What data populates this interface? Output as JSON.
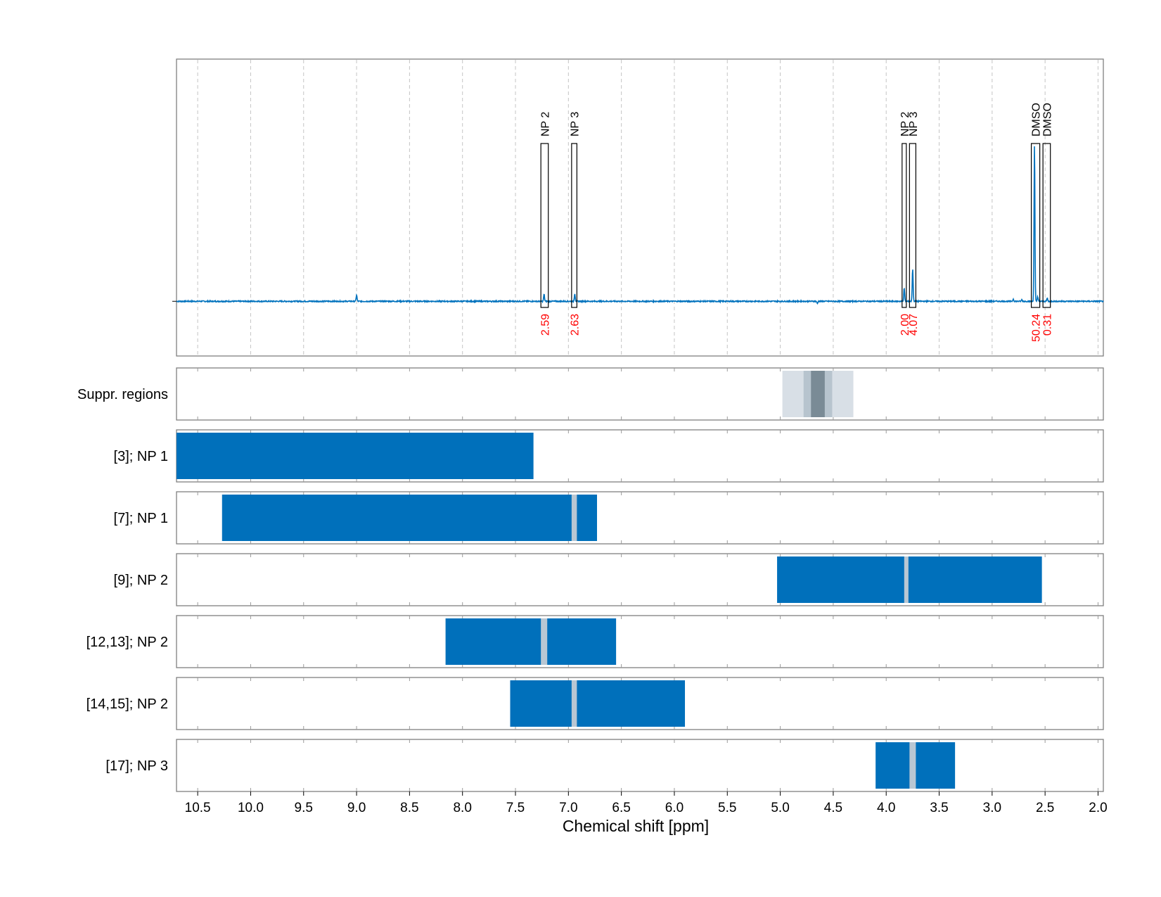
{
  "chart_data": {
    "type": "nmr_spectrum_with_range_tracks",
    "xlabel": "Chemical shift [ppm]",
    "xlim": [
      10.7,
      1.95
    ],
    "x_reversed": true,
    "xticks": [
      10.5,
      10.0,
      9.5,
      9.0,
      8.5,
      8.0,
      7.5,
      7.0,
      6.5,
      6.0,
      5.5,
      5.0,
      4.5,
      4.0,
      3.5,
      3.0,
      2.5,
      2.0
    ],
    "xtick_labels": [
      "10.5",
      "10.0",
      "9.5",
      "9.0",
      "8.5",
      "8.0",
      "7.5",
      "7.0",
      "6.5",
      "6.0",
      "5.5",
      "5.0",
      "4.5",
      "4.0",
      "3.5",
      "3.0",
      "2.5",
      "2.0"
    ],
    "grid": "vertical-dashed",
    "spectrum": {
      "baseline": 0,
      "ylim": [
        -0.07,
        0.31
      ],
      "peaks": [
        {
          "shift": 9.0,
          "height": 0.008
        },
        {
          "shift": 7.23,
          "height": 0.009
        },
        {
          "shift": 6.94,
          "height": 0.01
        },
        {
          "shift": 4.65,
          "height": -0.003
        },
        {
          "shift": 3.83,
          "height": 0.017
        },
        {
          "shift": 3.75,
          "height": 0.042
        },
        {
          "shift": 2.8,
          "height": 0.003
        },
        {
          "shift": 2.72,
          "height": 0.002
        },
        {
          "shift": 2.6,
          "height": 0.2
        },
        {
          "shift": 2.57,
          "height": 0.006
        },
        {
          "shift": 2.48,
          "height": 0.004
        }
      ]
    },
    "integrals": [
      {
        "label": "NP 2",
        "from": 7.26,
        "to": 7.19,
        "value": "2.59"
      },
      {
        "label": "NP 3",
        "from": 6.97,
        "to": 6.92,
        "value": "2.63"
      },
      {
        "label": "NP 2",
        "from": 3.85,
        "to": 3.81,
        "value": "2.00"
      },
      {
        "label": "NP 3",
        "from": 3.78,
        "to": 3.72,
        "value": "4.07"
      },
      {
        "label": "DMSO",
        "from": 2.63,
        "to": 2.55,
        "value": "50.24"
      },
      {
        "label": "DMSO",
        "from": 2.52,
        "to": 2.45,
        "value": "0.31"
      }
    ],
    "tracks": [
      {
        "label": "Suppr. regions",
        "bars": [
          {
            "from": 4.98,
            "to": 4.31,
            "color": "#d8dfe6"
          },
          {
            "from": 4.78,
            "to": 4.51,
            "color": "#b7c4ce"
          },
          {
            "from": 4.71,
            "to": 4.58,
            "color": "#7a8b96"
          }
        ],
        "gaps": []
      },
      {
        "label": "[3]; NP 1",
        "bars": [
          {
            "from": 10.7,
            "to": 7.33,
            "color": "#0070bb"
          }
        ],
        "gaps": []
      },
      {
        "label": "[7]; NP 1",
        "bars": [
          {
            "from": 10.27,
            "to": 6.73,
            "color": "#0070bb"
          }
        ],
        "gaps": [
          {
            "from": 6.97,
            "to": 6.92
          }
        ]
      },
      {
        "label": "[9]; NP 2",
        "bars": [
          {
            "from": 5.03,
            "to": 2.53,
            "color": "#0070bb"
          }
        ],
        "gaps": [
          {
            "from": 3.83,
            "to": 3.79
          }
        ]
      },
      {
        "label": "[12,13]; NP 2",
        "bars": [
          {
            "from": 8.16,
            "to": 6.55,
            "color": "#0070bb"
          }
        ],
        "gaps": [
          {
            "from": 7.26,
            "to": 7.2
          }
        ]
      },
      {
        "label": "[14,15]; NP 2",
        "bars": [
          {
            "from": 7.55,
            "to": 5.9,
            "color": "#0070bb"
          }
        ],
        "gaps": [
          {
            "from": 6.97,
            "to": 6.92
          }
        ]
      },
      {
        "label": "[17]; NP 3",
        "bars": [
          {
            "from": 4.1,
            "to": 3.35,
            "color": "#0070bb"
          }
        ],
        "gaps": [
          {
            "from": 3.78,
            "to": 3.72
          }
        ]
      }
    ],
    "colors": {
      "spectrum": "#0072bd",
      "bar": "#0070bb",
      "gap": "#b9c7d3",
      "integral_text": "#ff0000",
      "grid": "#c4c4c4",
      "frame": "#808080"
    }
  }
}
